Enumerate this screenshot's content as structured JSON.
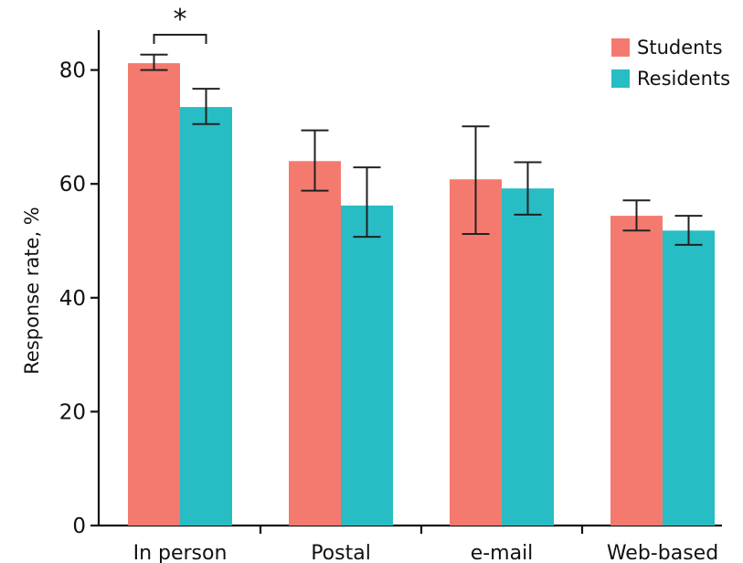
{
  "chart_data": {
    "type": "bar",
    "title": "",
    "xlabel": "",
    "ylabel": "Response rate, %",
    "ylim": [
      0,
      87
    ],
    "yticks": [
      0,
      20,
      40,
      60,
      80
    ],
    "categories": [
      "In person",
      "Postal",
      "e-mail",
      "Web-based"
    ],
    "series": [
      {
        "name": "Students",
        "color": "#f47a6f",
        "values": [
          81.2,
          64.0,
          60.8,
          54.4
        ],
        "error_low": [
          80.0,
          58.8,
          51.2,
          51.8
        ],
        "error_high": [
          82.7,
          69.4,
          70.1,
          57.1
        ]
      },
      {
        "name": "Residents",
        "color": "#28bcc4",
        "values": [
          73.5,
          56.2,
          59.2,
          51.8
        ],
        "error_low": [
          70.5,
          50.7,
          54.6,
          49.3
        ],
        "error_high": [
          76.7,
          62.9,
          63.8,
          54.4
        ]
      }
    ],
    "legend_position": "top-right",
    "grid": false,
    "annotations": [
      {
        "text": "*",
        "category": "In person",
        "type": "significance-bracket"
      }
    ]
  }
}
